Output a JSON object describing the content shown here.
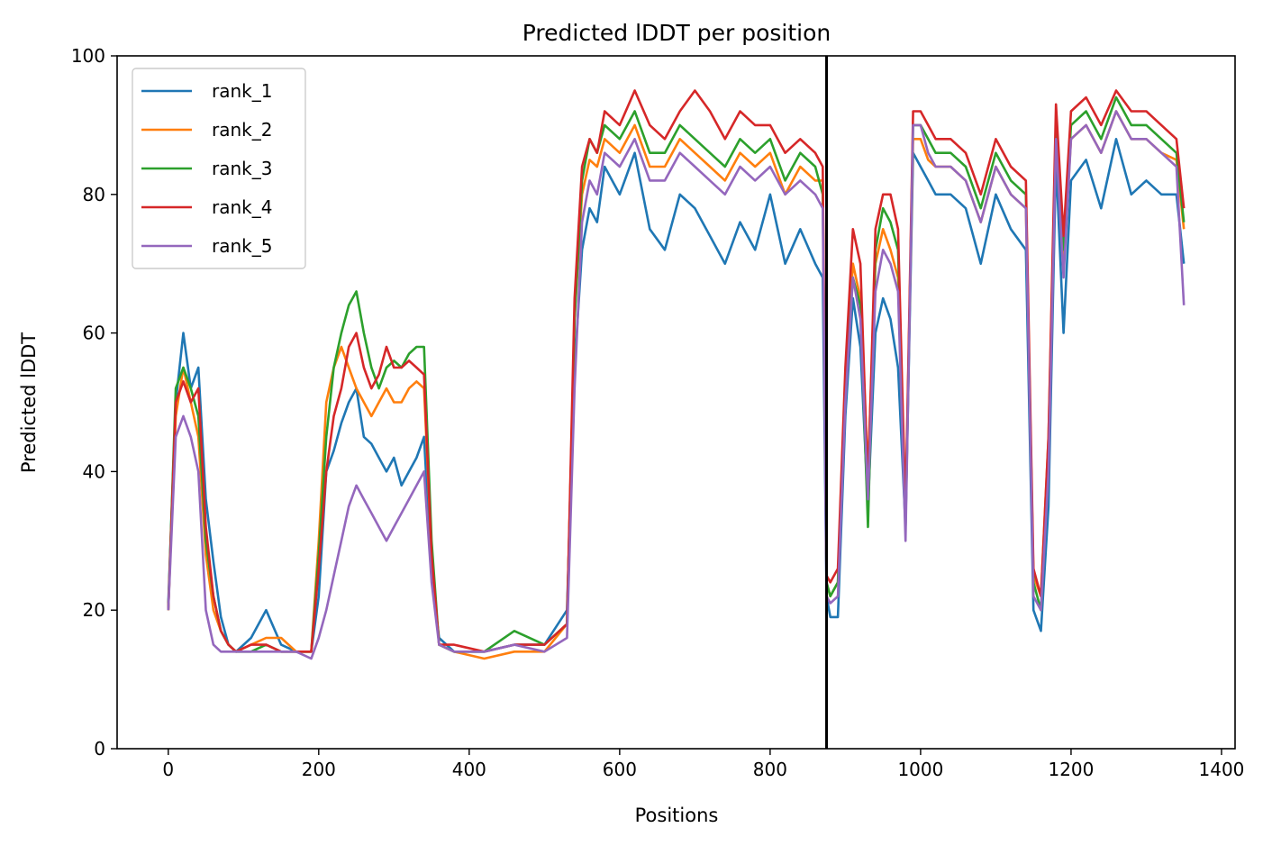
{
  "chart_data": {
    "type": "line",
    "title": "Predicted lDDT per position",
    "xlabel": "Positions",
    "ylabel": "Predicted lDDT",
    "xlim": [
      -68,
      1418
    ],
    "ylim": [
      0,
      100
    ],
    "x_ticks": [
      0,
      200,
      400,
      600,
      800,
      1000,
      1200,
      1400
    ],
    "y_ticks": [
      0,
      20,
      40,
      60,
      80,
      100
    ],
    "grid": false,
    "legend_position": "top-left",
    "vertical_line": {
      "x": 875,
      "color": "#000000"
    },
    "series": [
      {
        "name": "rank_1",
        "color": "#1f77b4",
        "x": [
          0,
          10,
          20,
          30,
          40,
          50,
          60,
          70,
          80,
          90,
          110,
          130,
          150,
          170,
          190,
          200,
          210,
          220,
          230,
          240,
          250,
          260,
          270,
          280,
          290,
          300,
          310,
          320,
          330,
          340,
          350,
          360,
          380,
          420,
          460,
          500,
          530,
          540,
          550,
          560,
          570,
          580,
          600,
          620,
          640,
          660,
          680,
          700,
          720,
          740,
          760,
          780,
          800,
          820,
          840,
          860,
          870,
          875,
          880,
          890,
          900,
          910,
          920,
          930,
          940,
          950,
          960,
          970,
          980,
          990,
          1000,
          1010,
          1020,
          1040,
          1060,
          1080,
          1100,
          1120,
          1140,
          1150,
          1160,
          1170,
          1180,
          1190,
          1200,
          1220,
          1240,
          1260,
          1280,
          1300,
          1320,
          1340,
          1350
        ],
        "y": [
          21,
          50,
          60,
          52,
          55,
          36,
          27,
          19,
          15,
          14,
          16,
          20,
          15,
          14,
          14,
          22,
          40,
          43,
          47,
          50,
          52,
          45,
          44,
          42,
          40,
          42,
          38,
          40,
          42,
          45,
          25,
          16,
          14,
          14,
          15,
          15,
          20,
          55,
          72,
          78,
          76,
          84,
          80,
          86,
          75,
          72,
          80,
          78,
          74,
          70,
          76,
          72,
          80,
          70,
          75,
          70,
          68,
          22,
          19,
          19,
          48,
          65,
          58,
          35,
          60,
          65,
          62,
          55,
          32,
          86,
          84,
          82,
          80,
          80,
          78,
          70,
          80,
          75,
          72,
          20,
          17,
          35,
          85,
          60,
          82,
          85,
          78,
          88,
          80,
          82,
          80,
          80,
          70
        ]
      },
      {
        "name": "rank_2",
        "color": "#ff7f0e",
        "x": [
          0,
          10,
          20,
          30,
          40,
          50,
          60,
          70,
          80,
          90,
          110,
          130,
          150,
          170,
          190,
          200,
          210,
          220,
          230,
          240,
          250,
          260,
          270,
          280,
          290,
          300,
          310,
          320,
          330,
          340,
          350,
          360,
          380,
          420,
          460,
          500,
          530,
          540,
          550,
          560,
          570,
          580,
          600,
          620,
          640,
          660,
          680,
          700,
          720,
          740,
          760,
          780,
          800,
          820,
          840,
          860,
          870,
          875,
          880,
          890,
          900,
          910,
          920,
          930,
          940,
          950,
          960,
          970,
          980,
          990,
          1000,
          1010,
          1020,
          1040,
          1060,
          1080,
          1100,
          1120,
          1140,
          1150,
          1160,
          1170,
          1180,
          1190,
          1200,
          1220,
          1240,
          1260,
          1280,
          1300,
          1320,
          1340,
          1350
        ],
        "y": [
          20,
          48,
          55,
          50,
          45,
          28,
          20,
          17,
          15,
          14,
          15,
          16,
          16,
          14,
          14,
          30,
          50,
          55,
          58,
          55,
          52,
          50,
          48,
          50,
          52,
          50,
          50,
          52,
          53,
          52,
          28,
          15,
          14,
          13,
          14,
          14,
          18,
          62,
          80,
          85,
          84,
          88,
          86,
          90,
          84,
          84,
          88,
          86,
          84,
          82,
          86,
          84,
          86,
          80,
          84,
          82,
          82,
          24,
          22,
          24,
          52,
          70,
          65,
          40,
          70,
          75,
          72,
          68,
          35,
          88,
          88,
          85,
          84,
          84,
          82,
          76,
          84,
          80,
          78,
          25,
          22,
          45,
          90,
          70,
          88,
          90,
          86,
          92,
          88,
          88,
          86,
          85,
          75
        ]
      },
      {
        "name": "rank_3",
        "color": "#2ca02c",
        "x": [
          0,
          10,
          20,
          30,
          40,
          50,
          60,
          70,
          80,
          90,
          110,
          130,
          150,
          170,
          190,
          200,
          210,
          220,
          230,
          240,
          250,
          260,
          270,
          280,
          290,
          300,
          310,
          320,
          330,
          340,
          350,
          360,
          380,
          420,
          460,
          500,
          530,
          540,
          550,
          560,
          570,
          580,
          600,
          620,
          640,
          660,
          680,
          700,
          720,
          740,
          760,
          780,
          800,
          820,
          840,
          860,
          870,
          875,
          880,
          890,
          900,
          910,
          920,
          930,
          940,
          950,
          960,
          970,
          980,
          990,
          1000,
          1010,
          1020,
          1040,
          1060,
          1080,
          1100,
          1120,
          1140,
          1150,
          1160,
          1170,
          1180,
          1190,
          1200,
          1220,
          1240,
          1260,
          1280,
          1300,
          1320,
          1340,
          1350
        ],
        "y": [
          20,
          52,
          55,
          52,
          48,
          30,
          22,
          17,
          15,
          14,
          14,
          15,
          14,
          14,
          14,
          28,
          45,
          55,
          60,
          64,
          66,
          60,
          55,
          52,
          55,
          56,
          55,
          57,
          58,
          58,
          30,
          15,
          14,
          14,
          17,
          15,
          18,
          62,
          82,
          88,
          86,
          90,
          88,
          92,
          86,
          86,
          90,
          88,
          86,
          84,
          88,
          86,
          88,
          82,
          86,
          84,
          80,
          24,
          22,
          24,
          52,
          68,
          64,
          32,
          72,
          78,
          76,
          72,
          32,
          90,
          90,
          88,
          86,
          86,
          84,
          78,
          86,
          82,
          80,
          24,
          20,
          42,
          90,
          72,
          90,
          92,
          88,
          94,
          90,
          90,
          88,
          86,
          76
        ]
      },
      {
        "name": "rank_4",
        "color": "#d62728",
        "x": [
          0,
          10,
          20,
          30,
          40,
          50,
          60,
          70,
          80,
          90,
          110,
          130,
          150,
          170,
          190,
          200,
          210,
          220,
          230,
          240,
          250,
          260,
          270,
          280,
          290,
          300,
          310,
          320,
          330,
          340,
          350,
          360,
          380,
          420,
          460,
          500,
          530,
          540,
          550,
          560,
          570,
          580,
          600,
          620,
          640,
          660,
          680,
          700,
          720,
          740,
          760,
          780,
          800,
          820,
          840,
          860,
          870,
          875,
          880,
          890,
          900,
          910,
          920,
          930,
          940,
          950,
          960,
          970,
          980,
          990,
          1000,
          1010,
          1020,
          1040,
          1060,
          1080,
          1100,
          1120,
          1140,
          1150,
          1160,
          1170,
          1180,
          1190,
          1200,
          1220,
          1240,
          1260,
          1280,
          1300,
          1320,
          1340,
          1350
        ],
        "y": [
          20,
          50,
          53,
          50,
          52,
          32,
          22,
          17,
          15,
          14,
          15,
          15,
          14,
          14,
          14,
          26,
          40,
          48,
          52,
          58,
          60,
          55,
          52,
          54,
          58,
          55,
          55,
          56,
          55,
          54,
          28,
          15,
          15,
          14,
          15,
          15,
          18,
          65,
          84,
          88,
          86,
          92,
          90,
          95,
          90,
          88,
          92,
          95,
          92,
          88,
          92,
          90,
          90,
          86,
          88,
          86,
          84,
          25,
          24,
          26,
          55,
          75,
          70,
          38,
          75,
          80,
          80,
          75,
          34,
          92,
          92,
          90,
          88,
          88,
          86,
          80,
          88,
          84,
          82,
          26,
          22,
          45,
          93,
          74,
          92,
          94,
          90,
          95,
          92,
          92,
          90,
          88,
          78
        ]
      },
      {
        "name": "rank_5",
        "color": "#9467bd",
        "x": [
          0,
          10,
          20,
          30,
          40,
          50,
          60,
          70,
          80,
          90,
          110,
          130,
          150,
          170,
          190,
          200,
          210,
          220,
          230,
          240,
          250,
          260,
          270,
          280,
          290,
          300,
          310,
          320,
          330,
          340,
          350,
          360,
          380,
          420,
          460,
          500,
          530,
          540,
          550,
          560,
          570,
          580,
          600,
          620,
          640,
          660,
          680,
          700,
          720,
          740,
          760,
          780,
          800,
          820,
          840,
          860,
          870,
          875,
          880,
          890,
          900,
          910,
          920,
          930,
          940,
          950,
          960,
          970,
          980,
          990,
          1000,
          1010,
          1020,
          1040,
          1060,
          1080,
          1100,
          1120,
          1140,
          1150,
          1160,
          1170,
          1180,
          1190,
          1200,
          1220,
          1240,
          1260,
          1280,
          1300,
          1320,
          1340,
          1350
        ],
        "y": [
          20,
          45,
          48,
          45,
          40,
          20,
          15,
          14,
          14,
          14,
          14,
          14,
          14,
          14,
          13,
          16,
          20,
          25,
          30,
          35,
          38,
          36,
          34,
          32,
          30,
          32,
          34,
          36,
          38,
          40,
          24,
          15,
          14,
          14,
          15,
          14,
          16,
          52,
          76,
          82,
          80,
          86,
          84,
          88,
          82,
          82,
          86,
          84,
          82,
          80,
          84,
          82,
          84,
          80,
          82,
          80,
          78,
          22,
          21,
          22,
          50,
          68,
          62,
          36,
          66,
          72,
          70,
          66,
          30,
          90,
          90,
          86,
          84,
          84,
          82,
          76,
          84,
          80,
          78,
          22,
          20,
          40,
          88,
          68,
          88,
          90,
          86,
          92,
          88,
          88,
          86,
          84,
          64
        ]
      }
    ]
  }
}
